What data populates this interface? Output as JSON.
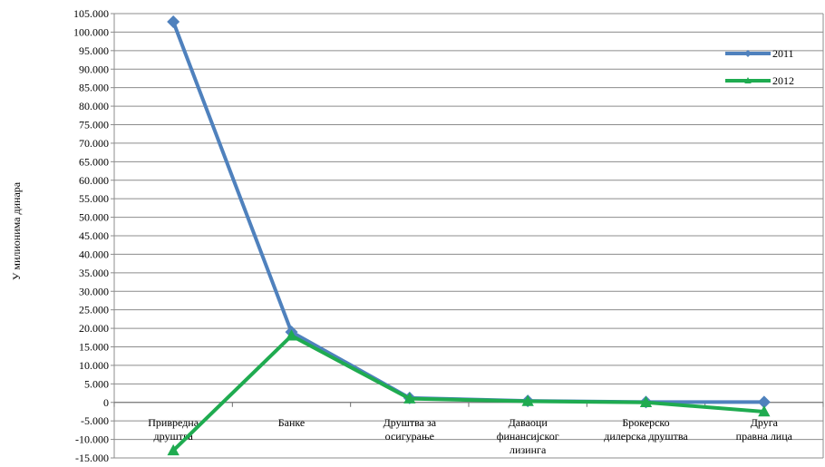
{
  "chart_data": {
    "type": "line",
    "title": "",
    "xlabel": "",
    "ylabel": "У милионима динара",
    "categories": [
      [
        "Привредна",
        "друштва"
      ],
      [
        "Банке"
      ],
      [
        "Друштва за",
        "осигурање"
      ],
      [
        "Даваоци",
        "финансијског",
        "лизинга"
      ],
      [
        "Брокерско",
        "дилерска друштва"
      ],
      [
        "Друга",
        "правна лица"
      ]
    ],
    "series": [
      {
        "name": "2011",
        "color": "#4F81BD",
        "marker": "diamond",
        "values": [
          102800,
          19000,
          1200,
          400,
          100,
          100
        ]
      },
      {
        "name": "2012",
        "color": "#1FAB50",
        "marker": "triangle",
        "values": [
          -13000,
          18000,
          1000,
          300,
          0,
          -2500
        ]
      }
    ],
    "ylim": [
      -15000,
      105000
    ],
    "ytick_step": 5000,
    "ytick_labels": [
      "-15.000",
      "-10.000",
      "-5.000",
      "0",
      "5.000",
      "10.000",
      "15.000",
      "20.000",
      "25.000",
      "30.000",
      "35.000",
      "40.000",
      "45.000",
      "50.000",
      "55.000",
      "60.000",
      "65.000",
      "70.000",
      "75.000",
      "80.000",
      "85.000",
      "90.000",
      "95.000",
      "100.000",
      "105.000"
    ],
    "grid": true,
    "legend": "top-right"
  }
}
